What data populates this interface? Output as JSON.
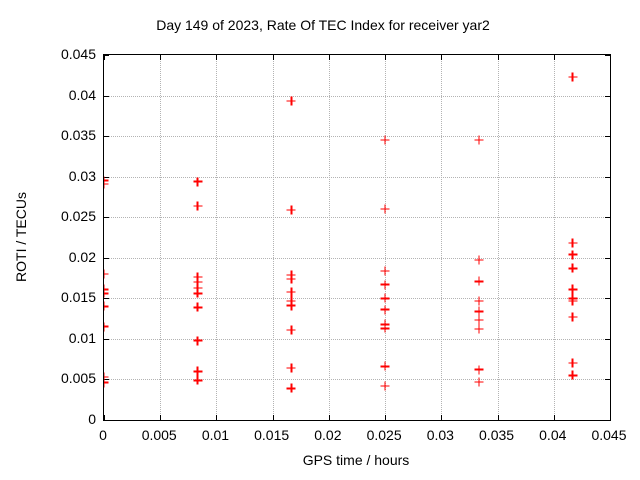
{
  "chart_data": {
    "type": "scatter",
    "title": "Day 149 of 2023, Rate Of TEC Index for receiver yar2",
    "xlabel": "GPS time / hours",
    "ylabel": "ROTI / TECUs",
    "xlim": [
      0,
      0.045
    ],
    "ylim": [
      0,
      0.045
    ],
    "x_ticks": [
      "0",
      "0.005",
      "0.01",
      "0.015",
      "0.02",
      "0.025",
      "0.03",
      "0.035",
      "0.04",
      "0.045"
    ],
    "y_ticks": [
      "0",
      "0.005",
      "0.01",
      "0.015",
      "0.02",
      "0.025",
      "0.03",
      "0.035",
      "0.04",
      "0.045"
    ],
    "grid": true,
    "legend": "none",
    "marker": "plus",
    "marker_color": "#ff0000",
    "frame_color": "#000000",
    "grid_color": "#b3b3b3",
    "series": [
      {
        "name": "ROTI",
        "groups": [
          {
            "x": 0,
            "y": [
              0.0295,
              0.0291,
              0.018,
              0.0161,
              0.0156,
              0.014,
              0.0115,
              0.0053,
              0.0046
            ]
          },
          {
            "x": 0.00833,
            "y": [
              0.0294,
              0.0264,
              0.0176,
              0.017,
              0.0163,
              0.0156,
              0.0139,
              0.0098,
              0.006,
              0.0049
            ]
          },
          {
            "x": 0.01667,
            "y": [
              0.0393,
              0.0259,
              0.0179,
              0.0174,
              0.0158,
              0.0147,
              0.0141,
              0.0111,
              0.0064,
              0.0039
            ]
          },
          {
            "x": 0.025,
            "y": [
              0.0345,
              0.026,
              0.0184,
              0.0167,
              0.015,
              0.0136,
              0.0118,
              0.0113,
              0.0066,
              0.0042
            ]
          },
          {
            "x": 0.03333,
            "y": [
              0.0345,
              0.0197,
              0.0171,
              0.0147,
              0.0134,
              0.0123,
              0.0112,
              0.0062,
              0.0047
            ]
          },
          {
            "x": 0.04167,
            "y": [
              0.0423,
              0.0218,
              0.0204,
              0.0187,
              0.0161,
              0.015,
              0.0147,
              0.0127,
              0.007,
              0.0055
            ]
          }
        ]
      }
    ]
  }
}
